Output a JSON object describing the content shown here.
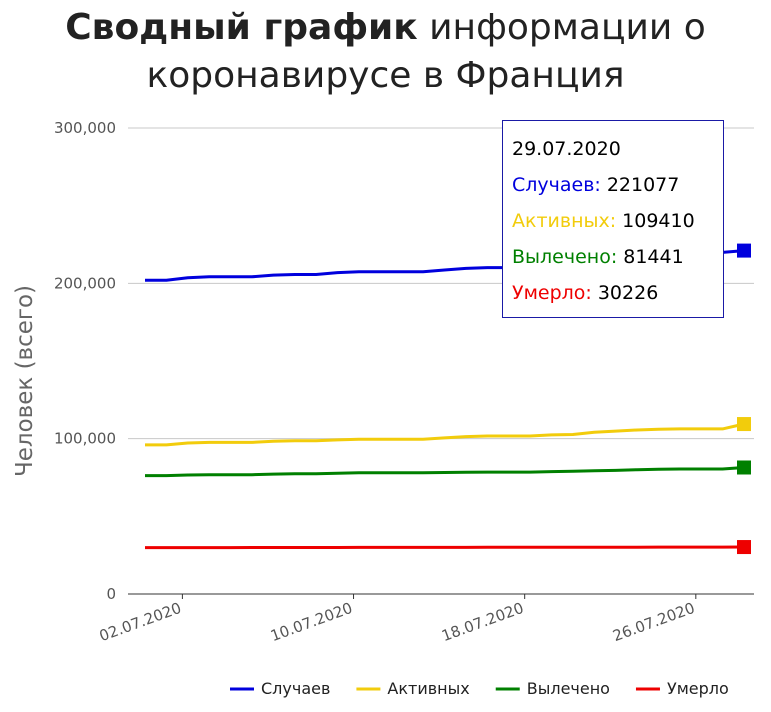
{
  "title": {
    "bold": "Сводный график",
    "rest": " информации о коронавирусе в Франция"
  },
  "chart_data": {
    "type": "line",
    "ylabel": "Человек (всего)",
    "ylim": [
      0,
      300000
    ],
    "yticks": [
      "0",
      "100,000",
      "200,000",
      "300,000"
    ],
    "x": [
      "01.07.2020",
      "02.07.2020",
      "03.07.2020",
      "04.07.2020",
      "05.07.2020",
      "06.07.2020",
      "07.07.2020",
      "08.07.2020",
      "09.07.2020",
      "10.07.2020",
      "11.07.2020",
      "12.07.2020",
      "13.07.2020",
      "14.07.2020",
      "15.07.2020",
      "16.07.2020",
      "17.07.2020",
      "18.07.2020",
      "19.07.2020",
      "20.07.2020",
      "21.07.2020",
      "22.07.2020",
      "23.07.2020",
      "24.07.2020",
      "25.07.2020",
      "26.07.2020",
      "27.07.2020",
      "28.07.2020",
      "29.07.2020"
    ],
    "xtick_labels": [
      "02.07.2020",
      "10.07.2020",
      "18.07.2020",
      "26.07.2020"
    ],
    "grid": true,
    "legend_position": "bottom",
    "series": [
      {
        "name": "Случаев",
        "color": "#0000dd",
        "values": [
          202000,
          202000,
          203600,
          204200,
          204200,
          204200,
          205300,
          205700,
          205700,
          206900,
          207500,
          207500,
          207500,
          207500,
          208600,
          209600,
          210100,
          210100,
          210100,
          210100,
          210100,
          210100,
          212200,
          215600,
          217300,
          217300,
          217300,
          219900,
          221077
        ]
      },
      {
        "name": "Активных",
        "color": "#f2cc0c",
        "values": [
          96000,
          96000,
          97200,
          97600,
          97600,
          97600,
          98300,
          98600,
          98600,
          99200,
          99600,
          99600,
          99600,
          99600,
          100500,
          101300,
          101700,
          101700,
          101700,
          102400,
          102700,
          104100,
          104900,
          105600,
          106100,
          106300,
          106300,
          106300,
          109410
        ]
      },
      {
        "name": "Вылечено",
        "color": "#008000",
        "values": [
          76200,
          76200,
          76600,
          76800,
          76800,
          76800,
          77200,
          77400,
          77400,
          77800,
          78000,
          78000,
          78000,
          78000,
          78200,
          78400,
          78500,
          78500,
          78500,
          78800,
          79000,
          79300,
          79600,
          80000,
          80300,
          80500,
          80500,
          80500,
          81441
        ]
      },
      {
        "name": "Умерло",
        "color": "#ee0000",
        "values": [
          29900,
          29900,
          29900,
          29900,
          29900,
          29920,
          29930,
          29940,
          29950,
          29960,
          29970,
          29980,
          29990,
          29990,
          30010,
          30030,
          30040,
          30050,
          30060,
          30070,
          30090,
          30110,
          30130,
          30150,
          30170,
          30180,
          30190,
          30210,
          30226
        ]
      }
    ]
  },
  "tooltip": {
    "date": "29.07.2020",
    "rows": [
      {
        "label": "Случаев:",
        "value": "221077",
        "color": "#0000dd"
      },
      {
        "label": "Активных:",
        "value": "109410",
        "color": "#f2cc0c"
      },
      {
        "label": "Вылечено:",
        "value": "81441",
        "color": "#008000"
      },
      {
        "label": "Умерло:",
        "value": "30226",
        "color": "#ee0000"
      }
    ]
  }
}
